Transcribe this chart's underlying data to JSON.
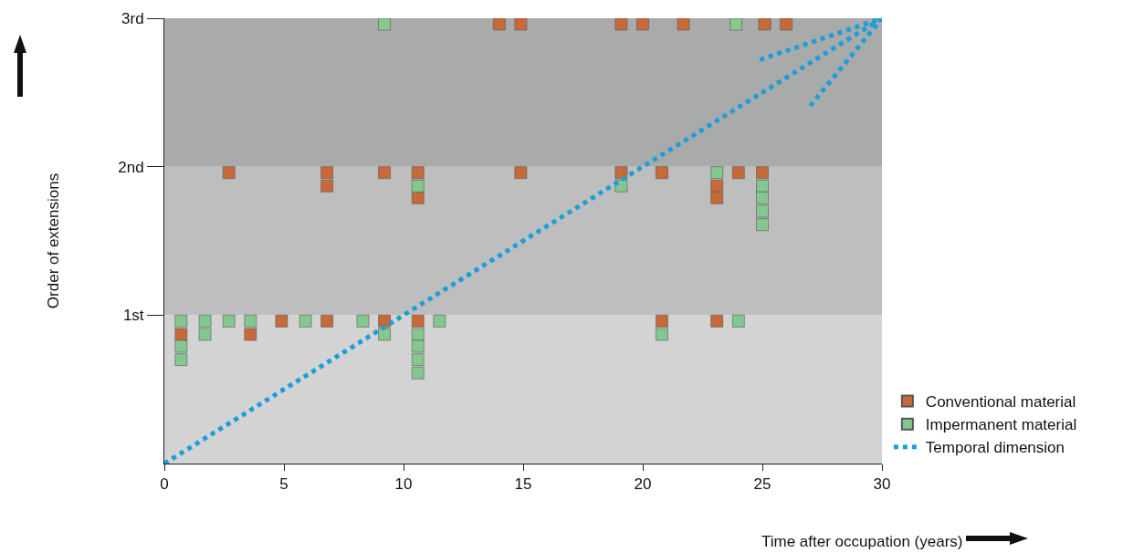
{
  "chart_data": {
    "type": "scatter",
    "xlabel": "Time after occupation (years)",
    "ylabel": "Order of extensions",
    "xlim": [
      0,
      30
    ],
    "xticks": [
      0,
      5,
      10,
      15,
      20,
      25,
      30
    ],
    "ylim": [
      0,
      3
    ],
    "yticks": [
      {
        "value": 1,
        "label": "1st"
      },
      {
        "value": 2,
        "label": "2nd"
      },
      {
        "value": 3,
        "label": "3rd"
      }
    ],
    "marker": "square",
    "grid": false,
    "legend": "bottom right",
    "bands": [
      {
        "axis": "y",
        "from": 0,
        "to": 1,
        "color": "#d3d3d3"
      },
      {
        "axis": "y",
        "from": 1,
        "to": 2,
        "color": "#bebebe"
      },
      {
        "axis": "y",
        "from": 2,
        "to": 3,
        "color": "#a9abab"
      }
    ],
    "series": [
      {
        "name": "Conventional material",
        "color": "#c8693a",
        "x": [
          0.7,
          3.6,
          4.9,
          6.8,
          9.2,
          10.6,
          20.8,
          23.1,
          2.7,
          6.8,
          6.8,
          9.2,
          10.6,
          10.6,
          14.9,
          19.1,
          20.8,
          23.1,
          23.1,
          24.0,
          25.0,
          14.0,
          14.9,
          19.1,
          20.0,
          21.7,
          25.1,
          26.0
        ],
        "values": [
          0.87,
          0.87,
          0.96,
          0.96,
          0.96,
          0.96,
          0.96,
          0.96,
          1.96,
          1.96,
          1.87,
          1.96,
          1.96,
          1.79,
          1.96,
          1.96,
          1.96,
          1.87,
          1.79,
          1.96,
          1.96,
          2.96,
          2.96,
          2.96,
          2.96,
          2.96,
          2.96,
          2.96
        ]
      },
      {
        "name": "Impermanent material",
        "color": "#85c88f",
        "x": [
          0.7,
          0.7,
          0.7,
          1.7,
          1.7,
          2.7,
          3.6,
          5.9,
          8.3,
          9.2,
          10.6,
          10.6,
          10.6,
          10.6,
          11.5,
          20.8,
          24.0,
          10.6,
          19.1,
          23.1,
          25.0,
          25.0,
          25.0,
          25.0,
          9.2,
          23.9
        ],
        "values": [
          0.96,
          0.79,
          0.7,
          0.96,
          0.87,
          0.96,
          0.96,
          0.96,
          0.96,
          0.87,
          0.87,
          0.79,
          0.7,
          0.61,
          0.96,
          0.87,
          0.96,
          1.87,
          1.87,
          1.96,
          1.87,
          1.79,
          1.7,
          1.61,
          2.96,
          2.96
        ]
      },
      {
        "name": "Temporal dimension",
        "type": "line",
        "line_style": "dotted",
        "marker": "none",
        "color": "#1a9fdb",
        "x": [
          0,
          30,
          null,
          24.9,
          30,
          null,
          27.0,
          30
        ],
        "values": [
          0,
          3,
          null,
          2.72,
          3,
          null,
          2.41,
          3
        ]
      }
    ]
  }
}
